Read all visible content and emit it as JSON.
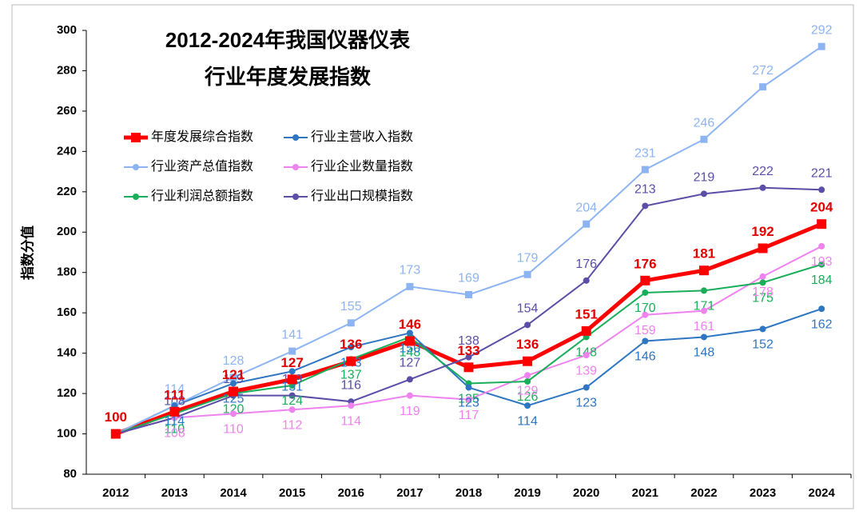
{
  "chart_data": {
    "type": "line",
    "title": "2012-2024年我国仪器仪表",
    "subtitle": "行业年度发展指数",
    "y_label": "指数分值",
    "categories": [
      "2012",
      "2013",
      "2014",
      "2015",
      "2016",
      "2017",
      "2018",
      "2019",
      "2020",
      "2021",
      "2022",
      "2023",
      "2024"
    ],
    "ylim": [
      80,
      300
    ],
    "yticks": [
      80,
      100,
      120,
      140,
      160,
      180,
      200,
      220,
      240,
      260,
      280,
      300
    ],
    "grid": false,
    "legend": "upper-left",
    "series": [
      {
        "name": "年度发展综合指数",
        "color": "#ff0000",
        "values": [
          100,
          111,
          121,
          127,
          136,
          146,
          133,
          136,
          151,
          176,
          181,
          192,
          204
        ]
      },
      {
        "name": "行业主营收入指数",
        "color": "#2e75c2",
        "values": [
          100,
          114,
          125,
          131,
          143,
          150,
          123,
          114,
          123,
          146,
          148,
          152,
          162
        ]
      },
      {
        "name": "行业资产总值指数",
        "color": "#8db4f2",
        "values": [
          100,
          114,
          128,
          141,
          155,
          173,
          169,
          179,
          204,
          231,
          246,
          272,
          292
        ]
      },
      {
        "name": "行业企业数量指数",
        "color": "#ee82ee",
        "values": [
          100,
          108,
          110,
          112,
          114,
          119,
          117,
          129,
          139,
          159,
          161,
          178,
          193
        ]
      },
      {
        "name": "行业利润总额指数",
        "color": "#1aad5a",
        "values": [
          100,
          110,
          120,
          124,
          137,
          148,
          125,
          126,
          148,
          170,
          171,
          175,
          184
        ]
      },
      {
        "name": "行业出口规模指数",
        "color": "#5a4ea6",
        "values": [
          100,
          108,
          119,
          119,
          116,
          127,
          138,
          154,
          176,
          213,
          219,
          222,
          221
        ]
      }
    ]
  }
}
